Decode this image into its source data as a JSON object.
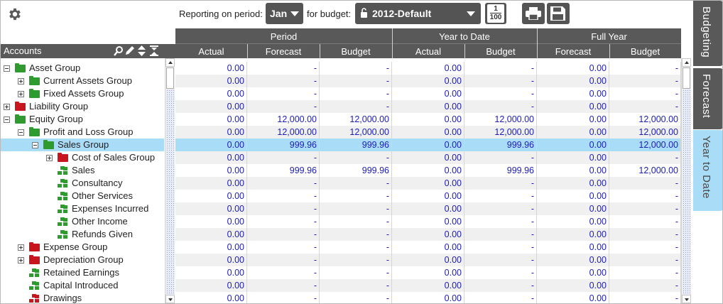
{
  "toolbar": {
    "settings_icon": "gear-icon",
    "reporting_label": "Reporting on period:",
    "period_value": "Jan",
    "budget_label": "for budget:",
    "budget_value": "2012-Default",
    "budget_lock_icon": "unlock-icon",
    "scale_button": {
      "top": "1",
      "bottom": "100"
    },
    "print_icon": "printer-icon",
    "save_icon": "save-icon"
  },
  "accounts": {
    "header": "Accounts",
    "tools": [
      "search-icon",
      "edit-icon",
      "sort-icon",
      "collapse-icon"
    ],
    "rows": [
      {
        "label": "Asset Group",
        "kind": "folder",
        "color": "#2e9b2e",
        "expander": "minus",
        "level": 0
      },
      {
        "label": "Current Assets Group",
        "kind": "folder",
        "color": "#2e9b2e",
        "expander": "plus",
        "level": 1
      },
      {
        "label": "Fixed Assets Group",
        "kind": "folder",
        "color": "#2e9b2e",
        "expander": "plus",
        "level": 1
      },
      {
        "label": "Liability Group",
        "kind": "folder",
        "color": "#c8161e",
        "expander": "plus",
        "level": 0
      },
      {
        "label": "Equity Group",
        "kind": "folder",
        "color": "#2e9b2e",
        "expander": "minus",
        "level": 0
      },
      {
        "label": "Profit and Loss Group",
        "kind": "folder",
        "color": "#2e9b2e",
        "expander": "minus",
        "level": 1
      },
      {
        "label": "Sales Group",
        "kind": "folder",
        "color": "#2e9b2e",
        "expander": "minus",
        "level": 2,
        "selected": true
      },
      {
        "label": "Cost of Sales Group",
        "kind": "folder",
        "color": "#c8161e",
        "expander": "plus",
        "level": 3
      },
      {
        "label": "Sales",
        "kind": "account",
        "color": "#2e9b2e",
        "level": 3
      },
      {
        "label": "Consultancy",
        "kind": "account",
        "color": "#2e9b2e",
        "level": 3
      },
      {
        "label": "Other Services",
        "kind": "account",
        "color": "#2e9b2e",
        "level": 3
      },
      {
        "label": "Expenses Incurred",
        "kind": "account",
        "color": "#2e9b2e",
        "level": 3
      },
      {
        "label": "Other Income",
        "kind": "account",
        "color": "#2e9b2e",
        "level": 3
      },
      {
        "label": "Refunds Given",
        "kind": "account",
        "color": "#2e9b2e",
        "level": 3
      },
      {
        "label": "Expense Group",
        "kind": "folder",
        "color": "#c8161e",
        "expander": "plus",
        "level": 1
      },
      {
        "label": "Depreciation Group",
        "kind": "folder",
        "color": "#c8161e",
        "expander": "plus",
        "level": 1
      },
      {
        "label": "Retained Earnings",
        "kind": "account",
        "color": "#2e9b2e",
        "level": 1
      },
      {
        "label": "Capital Introduced",
        "kind": "account",
        "color": "#2e9b2e",
        "level": 1
      },
      {
        "label": "Drawings",
        "kind": "account",
        "color": "#c8161e",
        "level": 1
      }
    ]
  },
  "grid": {
    "groups": [
      "Period",
      "Year to Date",
      "Full Year"
    ],
    "columns": [
      "Actual",
      "Forecast",
      "Budget",
      "Actual",
      "Budget",
      "Forecast",
      "Budget"
    ],
    "rows": [
      [
        "0.00",
        "-",
        "-",
        "0.00",
        "-",
        "0.00",
        "-"
      ],
      [
        "0.00",
        "-",
        "-",
        "0.00",
        "-",
        "0.00",
        "-"
      ],
      [
        "0.00",
        "-",
        "-",
        "0.00",
        "-",
        "0.00",
        "-"
      ],
      [
        "0.00",
        "-",
        "-",
        "0.00",
        "-",
        "0.00",
        "-"
      ],
      [
        "0.00",
        "12,000.00",
        "12,000.00",
        "0.00",
        "12,000.00",
        "0.00",
        "12,000.00"
      ],
      [
        "0.00",
        "12,000.00",
        "12,000.00",
        "0.00",
        "12,000.00",
        "0.00",
        "12,000.00"
      ],
      [
        "0.00",
        "999.96",
        "999.96",
        "0.00",
        "999.96",
        "0.00",
        "12,000.00"
      ],
      [
        "0.00",
        "-",
        "-",
        "0.00",
        "-",
        "0.00",
        "-"
      ],
      [
        "0.00",
        "999.96",
        "999.96",
        "0.00",
        "999.96",
        "0.00",
        "12,000.00"
      ],
      [
        "0.00",
        "-",
        "-",
        "0.00",
        "-",
        "0.00",
        "-"
      ],
      [
        "0.00",
        "-",
        "-",
        "0.00",
        "-",
        "0.00",
        "-"
      ],
      [
        "0.00",
        "-",
        "-",
        "0.00",
        "-",
        "0.00",
        "-"
      ],
      [
        "0.00",
        "-",
        "-",
        "0.00",
        "-",
        "0.00",
        "-"
      ],
      [
        "0.00",
        "-",
        "-",
        "0.00",
        "-",
        "0.00",
        "-"
      ],
      [
        "0.00",
        "-",
        "-",
        "0.00",
        "-",
        "0.00",
        "-"
      ],
      [
        "0.00",
        "-",
        "-",
        "0.00",
        "-",
        "0.00",
        "-"
      ],
      [
        "0.00",
        "-",
        "-",
        "0.00",
        "-",
        "0.00",
        "-"
      ],
      [
        "0.00",
        "-",
        "-",
        "0.00",
        "-",
        "0.00",
        "-"
      ],
      [
        "0.00",
        "-",
        "-",
        "0.00",
        "-",
        "0.00",
        "-"
      ]
    ]
  },
  "tabs": [
    {
      "label": "Budgeting",
      "active": false
    },
    {
      "label": "Forecast",
      "active": false
    },
    {
      "label": "Year to Date",
      "active": true
    }
  ],
  "colors": {
    "header_bg": "#595959",
    "selection": "#a9dcf7",
    "value_text": "#1c1cbb",
    "group_green": "#2e9b2e",
    "group_red": "#c8161e"
  }
}
